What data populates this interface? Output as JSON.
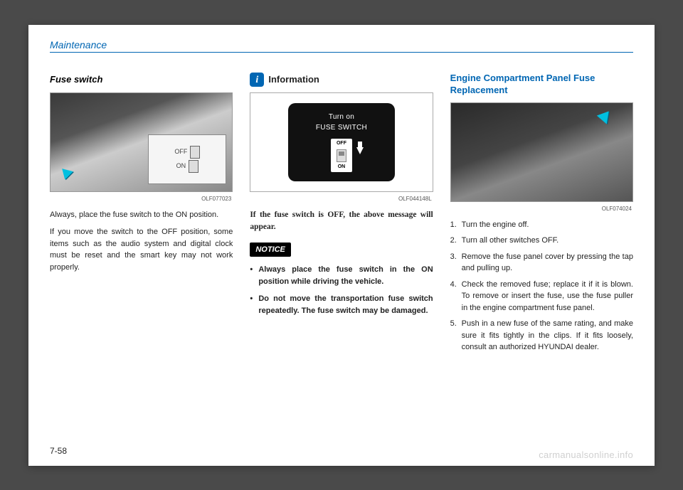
{
  "header": {
    "section": "Maintenance"
  },
  "col1": {
    "title": "Fuse switch",
    "fig_label": "OLF077023",
    "fuse_inset": {
      "off": "OFF",
      "on": "ON"
    },
    "p1": "Always, place the fuse switch to the ON position.",
    "p2": "If you move the switch to the OFF position, some items such as the audio system and digital clock must be reset and the smart key may not work properly."
  },
  "col2": {
    "info_label": "Information",
    "screen": {
      "line1": "Turn on",
      "line2": "FUSE SWITCH",
      "off": "OFF",
      "on": "ON"
    },
    "fig_label": "OLF044148L",
    "serif_p": "If the fuse switch is OFF, the above message will appear.",
    "notice": "NOTICE",
    "bullets": [
      "Always place the fuse switch in the ON position while driving the vehicle.",
      "Do not move the transportation fuse switch repeatedly. The fuse switch may be damaged."
    ]
  },
  "col3": {
    "title": "Engine Compartment Panel Fuse Replacement",
    "fig_label": "OLF074024",
    "steps": [
      "Turn the engine off.",
      "Turn all other switches OFF.",
      "Remove the fuse panel cover by pressing the tap and pulling up.",
      "Check the removed fuse; replace it if it is blown. To remove or insert the fuse, use the fuse puller in the engine compartment fuse panel.",
      "Push in a new fuse of the same rating, and make sure it fits tightly in the clips. If it fits loosely, consult an authorized HYUNDAI dealer."
    ]
  },
  "footer": {
    "page": "7-58",
    "watermark": "carmanualsonline.info"
  }
}
